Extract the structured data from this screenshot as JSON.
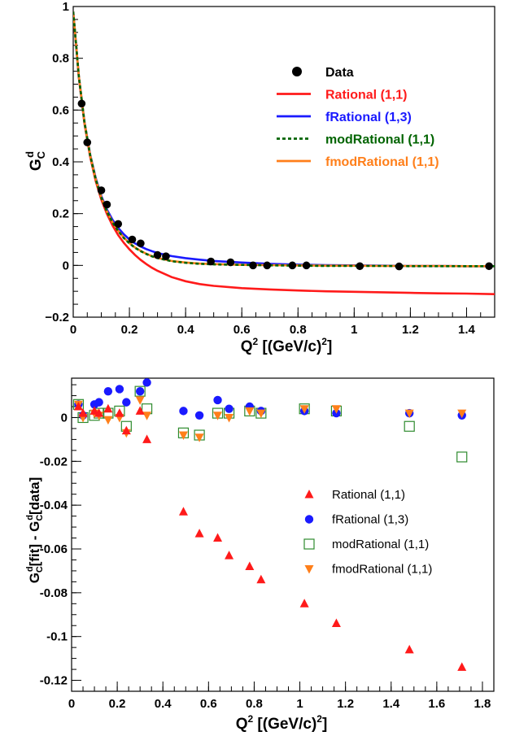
{
  "colors": {
    "rational": "#ff1a1a",
    "frational": "#1a1aff",
    "modrational_curve": "#006400",
    "modrational_marker": "#2e8b2e",
    "fmodrational": "#ff7f1a",
    "data": "#000000"
  },
  "chart_data": [
    {
      "type": "line",
      "title": "",
      "xlabel": "Q² [(GeV/c)²]",
      "ylabel": "G_C^d",
      "xlim": [
        0,
        1.5
      ],
      "ylim": [
        -0.2,
        1.0
      ],
      "xticks": [
        "0",
        "0.2",
        "0.4",
        "0.6",
        "0.8",
        "1",
        "1.2",
        "1.4"
      ],
      "xtick_values": [
        0,
        0.2,
        0.4,
        0.6,
        0.8,
        1.0,
        1.2,
        1.4
      ],
      "yticks": [
        "−0.2",
        "0",
        "0.2",
        "0.4",
        "0.6",
        "0.8",
        "1"
      ],
      "ytick_values": [
        -0.2,
        0,
        0.2,
        0.4,
        0.6,
        0.8,
        1.0
      ],
      "grid": false,
      "legend_position": "top-right",
      "legend": [
        {
          "label": "Data",
          "kind": "marker",
          "color": "#000000"
        },
        {
          "label": "Rational (1,1)",
          "kind": "line",
          "color": "#ff1a1a"
        },
        {
          "label": "fRational (1,3)",
          "kind": "line",
          "color": "#1a1aff"
        },
        {
          "label": "modRational (1,1)",
          "kind": "dashed",
          "color": "#006400"
        },
        {
          "label": "fmodRational (1,1)",
          "kind": "line",
          "color": "#ff7f1a"
        }
      ],
      "data_points": {
        "x": [
          0.03,
          0.05,
          0.1,
          0.12,
          0.16,
          0.21,
          0.24,
          0.3,
          0.33,
          0.49,
          0.56,
          0.64,
          0.69,
          0.78,
          0.83,
          1.02,
          1.16,
          1.48
        ],
        "y": [
          0.625,
          0.475,
          0.29,
          0.235,
          0.16,
          0.1,
          0.085,
          0.04,
          0.035,
          0.015,
          0.012,
          0.0,
          0.0,
          0.0,
          0.0,
          -0.003,
          -0.004,
          -0.003
        ]
      },
      "series": [
        {
          "name": "Rational (1,1)",
          "style": "solid",
          "x": [
            0,
            0.02,
            0.04,
            0.06,
            0.08,
            0.1,
            0.12,
            0.14,
            0.16,
            0.18,
            0.2,
            0.22,
            0.24,
            0.26,
            0.28,
            0.3,
            0.35,
            0.4,
            0.45,
            0.5,
            0.6,
            0.7,
            0.8,
            0.9,
            1.0,
            1.1,
            1.2,
            1.3,
            1.4,
            1.5
          ],
          "y": [
            0.98,
            0.725,
            0.548,
            0.421,
            0.326,
            0.254,
            0.199,
            0.154,
            0.117,
            0.087,
            0.062,
            0.04,
            0.021,
            0.005,
            -0.009,
            -0.021,
            -0.045,
            -0.061,
            -0.072,
            -0.079,
            -0.088,
            -0.093,
            -0.097,
            -0.1,
            -0.102,
            -0.104,
            -0.106,
            -0.108,
            -0.109,
            -0.111
          ]
        },
        {
          "name": "fRational (1,3)",
          "style": "solid",
          "x": [
            0,
            0.02,
            0.04,
            0.06,
            0.08,
            0.1,
            0.12,
            0.14,
            0.16,
            0.18,
            0.2,
            0.22,
            0.24,
            0.26,
            0.28,
            0.3,
            0.35,
            0.4,
            0.45,
            0.5,
            0.6,
            0.7,
            0.8,
            0.9,
            1.0,
            1.1,
            1.2,
            1.3,
            1.4,
            1.5
          ],
          "y": [
            0.98,
            0.73,
            0.555,
            0.43,
            0.338,
            0.268,
            0.216,
            0.176,
            0.145,
            0.12,
            0.1,
            0.085,
            0.073,
            0.063,
            0.055,
            0.048,
            0.036,
            0.028,
            0.022,
            0.017,
            0.011,
            0.006,
            0.003,
            0.001,
            0.0,
            -0.001,
            -0.002,
            -0.002,
            -0.003,
            -0.003
          ]
        },
        {
          "name": "modRational (1,1)",
          "style": "dashed",
          "x": [
            0,
            0.02,
            0.04,
            0.06,
            0.08,
            0.1,
            0.12,
            0.14,
            0.16,
            0.18,
            0.2,
            0.22,
            0.24,
            0.26,
            0.28,
            0.3,
            0.35,
            0.4,
            0.45,
            0.5,
            0.6,
            0.7,
            0.8,
            0.9,
            1.0,
            1.1,
            1.2,
            1.3,
            1.4,
            1.5
          ],
          "y": [
            0.98,
            0.73,
            0.553,
            0.427,
            0.333,
            0.262,
            0.208,
            0.166,
            0.133,
            0.106,
            0.085,
            0.068,
            0.055,
            0.044,
            0.035,
            0.028,
            0.016,
            0.01,
            0.006,
            0.004,
            0.002,
            0.0,
            -0.001,
            -0.002,
            -0.002,
            -0.002,
            -0.003,
            -0.003,
            -0.003,
            -0.003
          ]
        },
        {
          "name": "fmodRational (1,1)",
          "style": "solid",
          "x": [
            0,
            0.02,
            0.04,
            0.06,
            0.08,
            0.1,
            0.12,
            0.14,
            0.16,
            0.18,
            0.2,
            0.22,
            0.24,
            0.26,
            0.28,
            0.3,
            0.35,
            0.4,
            0.45,
            0.5,
            0.6,
            0.7,
            0.8,
            0.9,
            1.0,
            1.1,
            1.2,
            1.3,
            1.4,
            1.5
          ],
          "y": [
            0.98,
            0.731,
            0.554,
            0.428,
            0.334,
            0.263,
            0.209,
            0.167,
            0.134,
            0.107,
            0.086,
            0.069,
            0.056,
            0.045,
            0.036,
            0.029,
            0.017,
            0.011,
            0.007,
            0.005,
            0.002,
            0.001,
            0.0,
            -0.001,
            -0.001,
            -0.002,
            -0.002,
            -0.002,
            -0.003,
            -0.003
          ]
        }
      ]
    },
    {
      "type": "scatter",
      "title": "",
      "xlabel": "Q² [(GeV/c)²]",
      "ylabel": "G_C^d[fit] - G_C^d[data]",
      "xlim": [
        0,
        1.85
      ],
      "ylim": [
        -0.125,
        0.018
      ],
      "xticks": [
        "0",
        "0.2",
        "0.4",
        "0.6",
        "0.8",
        "1",
        "1.2",
        "1.4",
        "1.6",
        "1.8"
      ],
      "xtick_values": [
        0,
        0.2,
        0.4,
        0.6,
        0.8,
        1.0,
        1.2,
        1.4,
        1.6,
        1.8
      ],
      "yticks": [
        "0",
        "-0.02",
        "-0.04",
        "-0.06",
        "-0.08",
        "-0.1",
        "-0.12"
      ],
      "ytick_values": [
        0,
        -0.02,
        -0.04,
        -0.06,
        -0.08,
        -0.1,
        -0.12
      ],
      "grid": false,
      "legend_position": "center-right",
      "series": [
        {
          "name": "Rational (1,1)",
          "marker": "triangle-up",
          "x": [
            0.03,
            0.05,
            0.1,
            0.12,
            0.16,
            0.21,
            0.24,
            0.3,
            0.33,
            0.49,
            0.56,
            0.64,
            0.69,
            0.78,
            0.83,
            1.02,
            1.16,
            1.48,
            1.71
          ],
          "y": [
            0.005,
            0.002,
            0.003,
            0.002,
            0.004,
            0.002,
            -0.006,
            0.003,
            -0.01,
            -0.043,
            -0.053,
            -0.055,
            -0.063,
            -0.068,
            -0.074,
            -0.085,
            -0.094,
            -0.106,
            -0.114
          ]
        },
        {
          "name": "fRational (1,3)",
          "marker": "circle",
          "x": [
            0.03,
            0.05,
            0.1,
            0.12,
            0.16,
            0.21,
            0.24,
            0.3,
            0.33,
            0.49,
            0.56,
            0.64,
            0.69,
            0.78,
            0.83,
            1.02,
            1.16,
            1.48,
            1.71
          ],
          "y": [
            0.006,
            0.001,
            0.006,
            0.007,
            0.012,
            0.013,
            0.007,
            0.012,
            0.016,
            0.003,
            0.001,
            0.008,
            0.004,
            0.005,
            0.003,
            0.003,
            0.002,
            0.002,
            0.001
          ]
        },
        {
          "name": "modRational (1,1)",
          "marker": "open-square",
          "x": [
            0.03,
            0.05,
            0.1,
            0.12,
            0.16,
            0.21,
            0.24,
            0.3,
            0.33,
            0.49,
            0.56,
            0.64,
            0.69,
            0.78,
            0.83,
            1.02,
            1.16,
            1.48,
            1.71
          ],
          "y": [
            0.006,
            0.0,
            0.001,
            0.002,
            0.002,
            0.003,
            -0.004,
            0.012,
            0.004,
            -0.007,
            -0.008,
            0.002,
            0.002,
            0.003,
            0.002,
            0.004,
            0.003,
            -0.004,
            -0.018
          ]
        },
        {
          "name": "fmodRational (1,1)",
          "marker": "triangle-down",
          "x": [
            0.03,
            0.05,
            0.1,
            0.12,
            0.16,
            0.21,
            0.24,
            0.3,
            0.33,
            0.49,
            0.56,
            0.64,
            0.69,
            0.78,
            0.83,
            1.02,
            1.16,
            1.48,
            1.71
          ],
          "y": [
            0.006,
            0.0,
            0.002,
            0.001,
            -0.001,
            0.0,
            -0.007,
            0.008,
            0.001,
            -0.008,
            -0.009,
            0.001,
            0.0,
            0.003,
            0.002,
            0.004,
            0.004,
            0.002,
            0.002
          ]
        }
      ]
    }
  ]
}
